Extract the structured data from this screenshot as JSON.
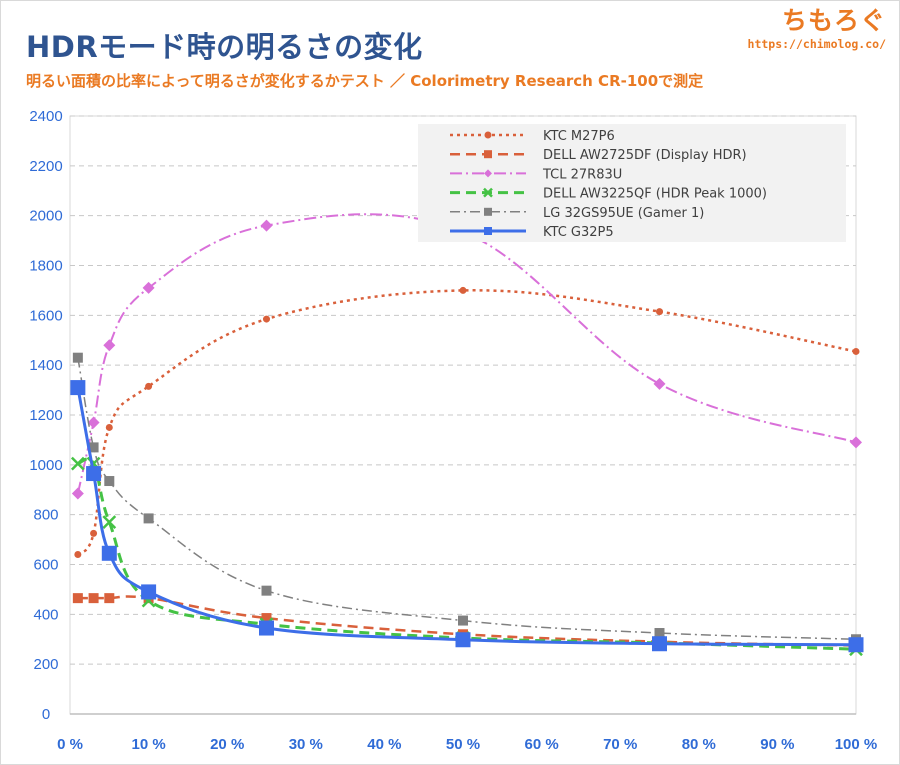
{
  "header": {
    "title": "HDRモード時の明るさの変化",
    "subtitle": "明るい面積の比率によって明るさが変化するかテスト ／ Colorimetry Research CR-100で測定",
    "brand_name": "ちもろぐ",
    "brand_url": "https://chimolog.co/"
  },
  "chart_data": {
    "type": "line",
    "title": "HDRモード時の明るさの変化",
    "xlabel": "",
    "ylabel": "",
    "xlim": [
      0,
      100
    ],
    "ylim": [
      0,
      2400
    ],
    "x_ticks": [
      0,
      10,
      20,
      30,
      40,
      50,
      60,
      70,
      80,
      90,
      100
    ],
    "x_tick_labels": [
      "0 %",
      "10 %",
      "20 %",
      "30 %",
      "40 %",
      "50 %",
      "60 %",
      "70 %",
      "80 %",
      "90 %",
      "100 %"
    ],
    "y_ticks": [
      0,
      200,
      400,
      600,
      800,
      1000,
      1200,
      1400,
      1600,
      1800,
      2000,
      2200,
      2400
    ],
    "y_tick_labels": [
      "0",
      "200",
      "400",
      "600",
      "800",
      "1000",
      "1200",
      "1400",
      "1600",
      "1800",
      "2000",
      "2200",
      "2400"
    ],
    "grid": "horizontal dashed",
    "legend_position": "top-right",
    "series": [
      {
        "name": "KTC M27P6",
        "color": "#d9603b",
        "dash": "3,4",
        "marker": "circle",
        "marker_size": 3.5,
        "width": 2.5,
        "x": [
          1,
          3,
          5,
          10,
          25,
          50,
          75,
          100
        ],
        "y": [
          640,
          725,
          1150,
          1315,
          1585,
          1700,
          1615,
          1455
        ]
      },
      {
        "name": "DELL AW2725DF (Display HDR)",
        "color": "#d9603b",
        "dash": "10,6",
        "marker": "square",
        "marker_size": 5,
        "width": 2.5,
        "x": [
          1,
          3,
          5,
          10,
          25,
          50,
          75,
          100
        ],
        "y": [
          465,
          465,
          465,
          465,
          385,
          320,
          290,
          275
        ]
      },
      {
        "name": "TCL 27R83U",
        "color": "#d970d9",
        "dash": "12,4,2,4",
        "marker": "diamond",
        "marker_size": 6,
        "width": 2,
        "x": [
          1,
          3,
          5,
          10,
          25,
          50,
          75,
          100
        ],
        "y": [
          885,
          1170,
          1480,
          1710,
          1960,
          1935,
          1325,
          1090
        ]
      },
      {
        "name": "DELL AW3225QF (HDR Peak 1000)",
        "color": "#45c245",
        "dash": "10,6",
        "marker": "cross",
        "marker_size": 6,
        "width": 3,
        "x": [
          1,
          3,
          5,
          10,
          25,
          50,
          75,
          100
        ],
        "y": [
          1005,
          1005,
          770,
          455,
          360,
          305,
          285,
          260
        ]
      },
      {
        "name": "LG 32GS95UE (Gamer 1)",
        "color": "#808080",
        "dash": "10,4,2,4",
        "marker": "square",
        "marker_size": 5,
        "width": 1.5,
        "x": [
          1,
          3,
          5,
          10,
          25,
          50,
          75,
          100
        ],
        "y": [
          1430,
          1070,
          935,
          785,
          495,
          375,
          325,
          300
        ]
      },
      {
        "name": "KTC G32P5",
        "color": "#3d6ee8",
        "dash": "",
        "marker": "square",
        "marker_size": 7.5,
        "width": 3,
        "x": [
          1,
          3,
          5,
          10,
          25,
          50,
          75,
          100
        ],
        "y": [
          1310,
          965,
          645,
          490,
          345,
          298,
          282,
          278
        ]
      }
    ]
  }
}
